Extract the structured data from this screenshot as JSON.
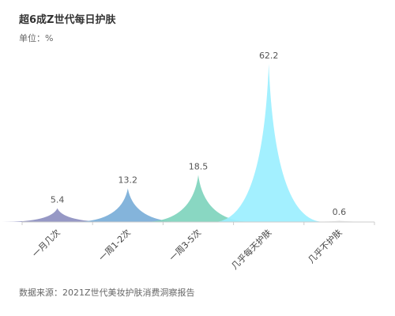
{
  "chart_data": {
    "type": "area",
    "title": "超6成Z世代每日护肤",
    "unit": "单位：%",
    "source": "数据来源：2021Z世代美妆护肤消费洞察报告",
    "categories": [
      "一月几次",
      "一周1-2次",
      "一周3-5次",
      "几乎每天护肤",
      "几乎不护肤"
    ],
    "values": [
      5.4,
      13.2,
      18.5,
      62.2,
      0.6
    ],
    "colors": [
      "#8d8fc0",
      "#7aaed8",
      "#7fd4bd",
      "#9befff",
      "#e8e8e8"
    ],
    "ylim": [
      0,
      62.2
    ],
    "grid": false,
    "legend": false
  }
}
